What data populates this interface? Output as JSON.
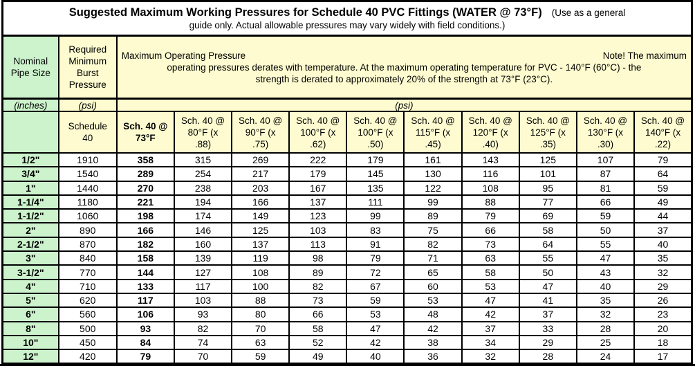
{
  "title": {
    "main": "Suggested Maximum Working Pressures for Schedule 40 PVC Fittings (WATER @ 73°F)",
    "suffix": "(Use as a general",
    "line2": "guide only. Actual allowable pressures may vary widely with field conditions.)"
  },
  "header": {
    "nominal": "Nominal\nPipe Size",
    "burst": "Required\nMinimum\nBurst\nPressure",
    "operating": {
      "left": "Maximum Operating Pressure",
      "note": "Note! The maximum",
      "line1": "operating pressures derates with temperature. At the maximum operating temperature for PVC - 140°F (60°C) - the",
      "line2": "strength is derated to approximately 20% of the strength at 73°F (23°C)."
    },
    "units": {
      "inches": "(inches)",
      "psi_burst": "(psi)",
      "psi_operating": "(psi)"
    },
    "columns": [
      "Schedule\n40",
      "Sch. 40 @\n73°F",
      "Sch. 40 @\n80°F  (x\n.88)",
      "Sch. 40 @\n90°F (x\n.75)",
      "Sch. 40 @\n100°F (x\n.62)",
      "Sch. 40 @\n100°F (x\n.50)",
      "Sch. 40 @\n115°F (x\n.45)",
      "Sch. 40 @\n120°F (x\n.40)",
      "Sch. 40 @\n125°F (x\n.35)",
      "Sch. 40 @\n130°F (x\n.30)",
      "Sch. 40 @\n140°F (x\n.22)"
    ]
  },
  "rows": [
    {
      "size": "1/2\"",
      "burst": "1910",
      "values": [
        "358",
        "315",
        "269",
        "222",
        "179",
        "161",
        "143",
        "125",
        "107",
        "79"
      ]
    },
    {
      "size": "3/4\"",
      "burst": "1540",
      "values": [
        "289",
        "254",
        "217",
        "179",
        "145",
        "130",
        "116",
        "101",
        "87",
        "64"
      ]
    },
    {
      "size": "1\"",
      "burst": "1440",
      "values": [
        "270",
        "238",
        "203",
        "167",
        "135",
        "122",
        "108",
        "95",
        "81",
        "59"
      ]
    },
    {
      "size": "1-1/4\"",
      "burst": "1180",
      "values": [
        "221",
        "194",
        "166",
        "137",
        "111",
        "99",
        "88",
        "77",
        "66",
        "49"
      ]
    },
    {
      "size": "1-1/2\"",
      "burst": "1060",
      "values": [
        "198",
        "174",
        "149",
        "123",
        "99",
        "89",
        "79",
        "69",
        "59",
        "44"
      ]
    },
    {
      "size": "2\"",
      "burst": "890",
      "values": [
        "166",
        "146",
        "125",
        "103",
        "83",
        "75",
        "66",
        "58",
        "50",
        "37"
      ]
    },
    {
      "size": "2-1/2\"",
      "burst": "870",
      "values": [
        "182",
        "160",
        "137",
        "113",
        "91",
        "82",
        "73",
        "64",
        "55",
        "40"
      ]
    },
    {
      "size": "3\"",
      "burst": "840",
      "values": [
        "158",
        "139",
        "119",
        "98",
        "79",
        "71",
        "63",
        "55",
        "47",
        "35"
      ]
    },
    {
      "size": "3-1/2\"",
      "burst": "770",
      "values": [
        "144",
        "127",
        "108",
        "89",
        "72",
        "65",
        "58",
        "50",
        "43",
        "32"
      ]
    },
    {
      "size": "4\"",
      "burst": "710",
      "values": [
        "133",
        "117",
        "100",
        "82",
        "67",
        "60",
        "53",
        "47",
        "40",
        "29"
      ]
    },
    {
      "size": "5\"",
      "burst": "620",
      "values": [
        "117",
        "103",
        "88",
        "73",
        "59",
        "53",
        "47",
        "41",
        "35",
        "26"
      ]
    },
    {
      "size": "6\"",
      "burst": "560",
      "values": [
        "106",
        "93",
        "80",
        "66",
        "53",
        "48",
        "42",
        "37",
        "32",
        "23"
      ]
    },
    {
      "size": "8\"",
      "burst": "500",
      "values": [
        "93",
        "82",
        "70",
        "58",
        "47",
        "42",
        "37",
        "33",
        "28",
        "20"
      ]
    },
    {
      "size": "10\"",
      "burst": "450",
      "values": [
        "84",
        "74",
        "63",
        "52",
        "42",
        "38",
        "34",
        "29",
        "25",
        "18"
      ]
    },
    {
      "size": "12\"",
      "burst": "420",
      "values": [
        "79",
        "70",
        "59",
        "49",
        "40",
        "36",
        "32",
        "28",
        "24",
        "17"
      ]
    }
  ],
  "colors": {
    "pipe_size_column_bg": "#ccf3cc",
    "header_bg": "#fdfbcf",
    "border": "#000000",
    "text": "#000000"
  }
}
